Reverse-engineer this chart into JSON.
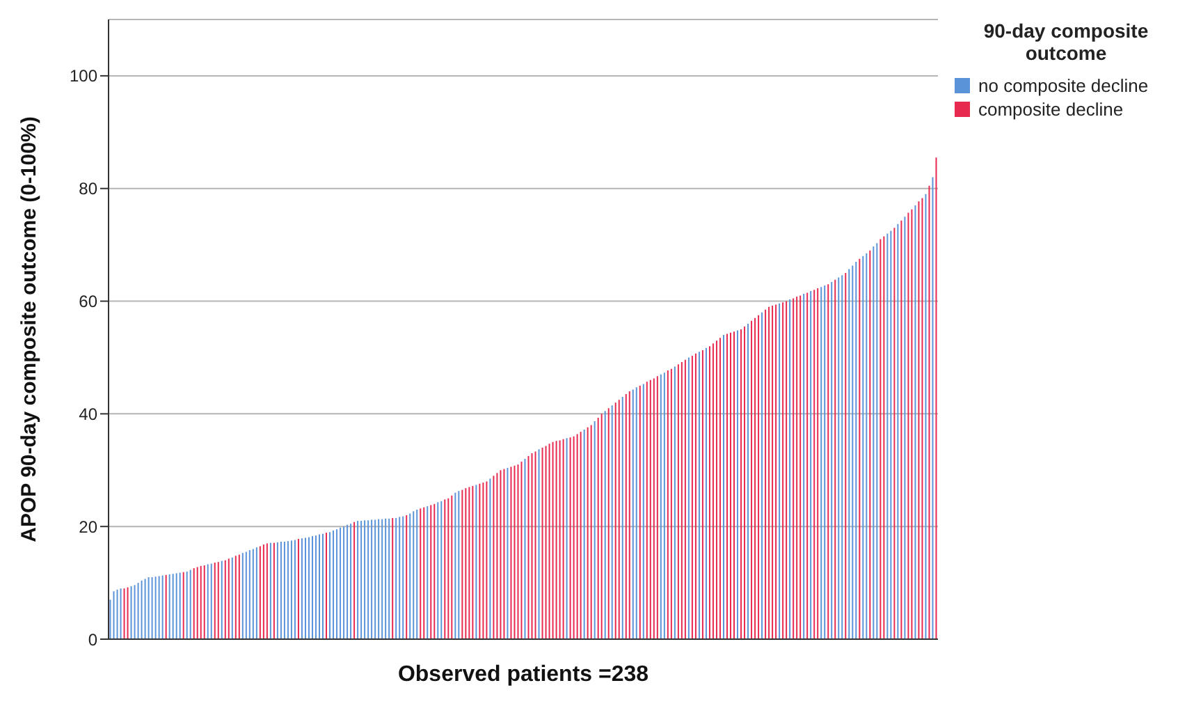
{
  "chart_data": {
    "type": "bar",
    "xlabel": "Observed patients =238",
    "ylabel": "APOP 90-day composite outcome (0-100%)",
    "legend_title": "90-day composite outcome",
    "legend": "right",
    "grid": "y",
    "tick_labels": "y",
    "ylim": [
      0,
      110
    ],
    "yticks": [
      0,
      20,
      40,
      60,
      80,
      100
    ],
    "categories": [
      null,
      null,
      null,
      null,
      null,
      null,
      null,
      null,
      null,
      null,
      null,
      null,
      null,
      null,
      null,
      null,
      null,
      null,
      null,
      null,
      null,
      null,
      null,
      null,
      null,
      null,
      null,
      null,
      null,
      null,
      null,
      null,
      null,
      null,
      null,
      null,
      null,
      null,
      null,
      null,
      null,
      null,
      null,
      null,
      null,
      null,
      null,
      null,
      null,
      null,
      null,
      null,
      null,
      null,
      null,
      null,
      null,
      null,
      null,
      null,
      null,
      null,
      null,
      null,
      null,
      null,
      null,
      null,
      null,
      null,
      null,
      null,
      null,
      null,
      null,
      null,
      null,
      null,
      null,
      null,
      null,
      null,
      null,
      null,
      null,
      null,
      null,
      null,
      null,
      null,
      null,
      null,
      null,
      null,
      null,
      null,
      null,
      null,
      null,
      null,
      null,
      null,
      null,
      null,
      null,
      null,
      null,
      null,
      null,
      null,
      null,
      null,
      null,
      null,
      null,
      null,
      null,
      null,
      null,
      null,
      null,
      null,
      null,
      null,
      null,
      null,
      null,
      null,
      null,
      null,
      null,
      null,
      null,
      null,
      null,
      null,
      null,
      null,
      null,
      null,
      null,
      null,
      null,
      null,
      null,
      null,
      null,
      null,
      null,
      null,
      null,
      null,
      null,
      null,
      null,
      null,
      null,
      null,
      null,
      null,
      null,
      null,
      null,
      null,
      null,
      null,
      null,
      null,
      null,
      null,
      null,
      null,
      null,
      null,
      null,
      null,
      null,
      null,
      null,
      null,
      null,
      null,
      null,
      null,
      null,
      null,
      null,
      null,
      null,
      null,
      null,
      null,
      null,
      null,
      null,
      null,
      null,
      null,
      null,
      null,
      null,
      null,
      null,
      null,
      null,
      null,
      null,
      null,
      null,
      null,
      null,
      null,
      null,
      null,
      null,
      null,
      null,
      null,
      null,
      null,
      null,
      null,
      null,
      null,
      null,
      null,
      null,
      null,
      null,
      null,
      null,
      null,
      null,
      null,
      null,
      null,
      null,
      null
    ],
    "series": [
      {
        "name": "no composite decline",
        "color": "#5b93d8",
        "values": [
          7.0,
          8.5,
          8.8,
          9.0,
          null,
          null,
          9.4,
          9.6,
          10.0,
          10.4,
          10.7,
          11.0,
          11.0,
          11.1,
          11.2,
          11.3,
          null,
          11.5,
          11.6,
          11.7,
          11.8,
          null,
          12.0,
          12.3,
          null,
          null,
          null,
          null,
          13.3,
          13.4,
          null,
          null,
          13.9,
          null,
          null,
          14.5,
          null,
          null,
          15.3,
          15.5,
          15.8,
          16.0,
          16.3,
          null,
          null,
          null,
          17.1,
          null,
          17.2,
          17.3,
          17.3,
          17.4,
          17.5,
          17.6,
          null,
          17.9,
          18.0,
          18.1,
          18.3,
          18.4,
          18.6,
          18.7,
          null,
          19.0,
          19.3,
          19.5,
          19.8,
          20.0,
          20.3,
          20.5,
          null,
          21.0,
          21.0,
          21.1,
          21.1,
          21.2,
          21.2,
          21.3,
          21.3,
          21.4,
          21.4,
          null,
          21.5,
          21.7,
          21.8,
          null,
          22.3,
          22.7,
          23.0,
          null,
          null,
          23.6,
          null,
          null,
          24.3,
          24.5,
          null,
          null,
          null,
          26.0,
          26.3,
          null,
          null,
          null,
          null,
          27.4,
          null,
          null,
          null,
          28.5,
          null,
          null,
          null,
          null,
          30.4,
          null,
          null,
          null,
          null,
          32.0,
          null,
          null,
          null,
          33.7,
          null,
          null,
          null,
          null,
          null,
          null,
          null,
          35.7,
          null,
          null,
          null,
          null,
          37.2,
          null,
          null,
          38.7,
          null,
          null,
          40.5,
          null,
          41.5,
          null,
          null,
          43.0,
          null,
          null,
          44.3,
          44.7,
          null,
          45.3,
          null,
          null,
          null,
          null,
          47.0,
          47.3,
          null,
          null,
          48.4,
          null,
          null,
          null,
          50.0,
          null,
          null,
          51.0,
          null,
          51.7,
          null,
          null,
          null,
          null,
          54.0,
          null,
          null,
          null,
          54.8,
          null,
          null,
          56.0,
          null,
          null,
          null,
          58.0,
          null,
          null,
          null,
          null,
          59.6,
          null,
          null,
          60.3,
          null,
          null,
          null,
          61.3,
          null,
          61.8,
          null,
          null,
          62.5,
          62.8,
          null,
          63.4,
          null,
          64.2,
          64.6,
          null,
          65.7,
          66.3,
          67.0,
          null,
          68.0,
          68.5,
          null,
          69.7,
          70.3,
          null,
          null,
          72.0,
          72.5,
          null,
          73.7,
          null,
          75.0,
          null,
          null,
          77.0,
          null,
          null,
          79.0,
          null,
          82.0,
          null
        ]
      },
      {
        "name": "composite decline",
        "color": "#e8294f",
        "values": [
          null,
          null,
          null,
          null,
          9.0,
          9.2,
          null,
          null,
          null,
          null,
          null,
          null,
          null,
          null,
          null,
          null,
          11.4,
          null,
          null,
          null,
          null,
          11.9,
          null,
          null,
          12.6,
          12.8,
          13.0,
          13.1,
          null,
          null,
          13.6,
          13.7,
          null,
          14.0,
          14.3,
          null,
          14.8,
          15.0,
          null,
          null,
          null,
          null,
          null,
          16.5,
          16.8,
          17.0,
          null,
          17.1,
          null,
          null,
          null,
          null,
          null,
          null,
          17.8,
          null,
          null,
          null,
          null,
          null,
          null,
          null,
          18.9,
          null,
          null,
          null,
          null,
          null,
          null,
          null,
          20.8,
          null,
          null,
          null,
          null,
          null,
          null,
          null,
          null,
          null,
          null,
          21.5,
          null,
          null,
          null,
          22.0,
          null,
          null,
          null,
          23.2,
          23.4,
          null,
          23.8,
          24.0,
          null,
          null,
          24.8,
          25.0,
          25.5,
          null,
          null,
          26.5,
          26.8,
          27.0,
          27.2,
          null,
          27.6,
          27.8,
          28.0,
          null,
          29.0,
          29.5,
          30.0,
          30.2,
          null,
          30.6,
          30.8,
          31.0,
          31.5,
          null,
          32.5,
          33.0,
          33.3,
          null,
          34.0,
          34.3,
          34.7,
          35.0,
          35.2,
          35.3,
          35.5,
          null,
          35.8,
          36.0,
          36.4,
          36.8,
          null,
          37.6,
          38.0,
          null,
          39.3,
          40.0,
          null,
          41.0,
          null,
          42.0,
          42.5,
          null,
          43.5,
          44.0,
          null,
          null,
          45.0,
          null,
          45.7,
          46.0,
          46.3,
          46.7,
          null,
          null,
          47.7,
          48.0,
          null,
          48.8,
          49.2,
          49.6,
          null,
          50.3,
          50.7,
          null,
          51.3,
          null,
          52.0,
          52.5,
          53.0,
          53.5,
          null,
          54.2,
          54.4,
          54.6,
          null,
          55.0,
          55.5,
          null,
          56.5,
          57.0,
          57.5,
          null,
          58.5,
          59.0,
          59.2,
          59.4,
          null,
          59.8,
          60.0,
          null,
          60.5,
          60.8,
          61.0,
          null,
          61.5,
          null,
          62.0,
          62.3,
          null,
          null,
          63.0,
          null,
          63.8,
          null,
          null,
          65.0,
          null,
          null,
          null,
          67.5,
          null,
          null,
          69.0,
          null,
          null,
          71.0,
          71.5,
          null,
          null,
          73.0,
          null,
          74.3,
          null,
          75.7,
          76.3,
          null,
          77.7,
          78.3,
          null,
          80.5,
          null,
          85.5
        ]
      }
    ]
  }
}
